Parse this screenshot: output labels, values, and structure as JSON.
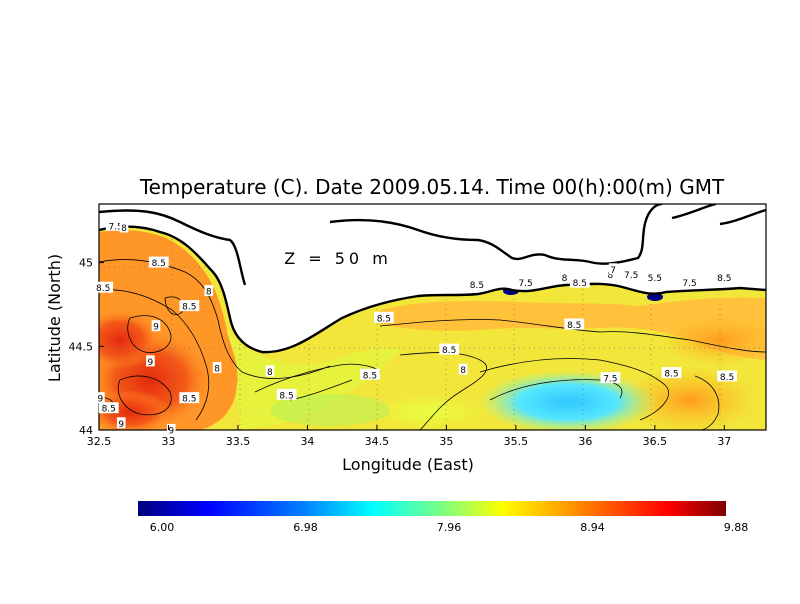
{
  "chart_data": {
    "type": "heatmap",
    "title": "Temperature (C). Date 2009.05.14. Time 00(h):00(m) GMT",
    "xlabel": "Longitude (East)",
    "ylabel": "Latitude (North)",
    "annotation": "Z = 50 m",
    "xlim": [
      32.5,
      37.3
    ],
    "ylim": [
      44.0,
      45.35
    ],
    "x_ticks": [
      {
        "value": 32.5,
        "label": "32.5"
      },
      {
        "value": 33,
        "label": "33"
      },
      {
        "value": 33.5,
        "label": "33.5"
      },
      {
        "value": 34,
        "label": "34"
      },
      {
        "value": 34.5,
        "label": "34.5"
      },
      {
        "value": 35,
        "label": "35"
      },
      {
        "value": 35.5,
        "label": "35.5"
      },
      {
        "value": 36,
        "label": "36"
      },
      {
        "value": 36.5,
        "label": "36.5"
      },
      {
        "value": 37,
        "label": "37"
      }
    ],
    "y_ticks": [
      {
        "value": 44,
        "label": "44"
      },
      {
        "value": 44.5,
        "label": "44.5"
      },
      {
        "value": 45,
        "label": "45"
      }
    ],
    "grid": true,
    "colorbar": {
      "min": 6.0,
      "max": 9.88,
      "tick_labels": [
        "6.00",
        "6.98",
        "7.96",
        "8.94",
        "9.88"
      ],
      "colors": [
        "#00007f",
        "#0000ff",
        "#007fff",
        "#00ffff",
        "#7fff7f",
        "#ffff00",
        "#ff7f00",
        "#ff0000",
        "#7f0000"
      ]
    },
    "contour_labels": [
      {
        "lon": 32.62,
        "lat": 45.22,
        "label": "7.5"
      },
      {
        "lon": 32.68,
        "lat": 45.21,
        "label": "8"
      },
      {
        "lon": 32.93,
        "lat": 45.0,
        "label": "8.5"
      },
      {
        "lon": 32.53,
        "lat": 44.85,
        "label": "8.5"
      },
      {
        "lon": 33.29,
        "lat": 44.83,
        "label": "8"
      },
      {
        "lon": 33.15,
        "lat": 44.74,
        "label": "8.5"
      },
      {
        "lon": 32.91,
        "lat": 44.62,
        "label": "9"
      },
      {
        "lon": 32.87,
        "lat": 44.41,
        "label": "9"
      },
      {
        "lon": 33.35,
        "lat": 44.37,
        "label": "8"
      },
      {
        "lon": 33.15,
        "lat": 44.19,
        "label": "8.5"
      },
      {
        "lon": 32.57,
        "lat": 44.13,
        "label": "8.5"
      },
      {
        "lon": 32.66,
        "lat": 44.04,
        "label": "9"
      },
      {
        "lon": 32.51,
        "lat": 44.19,
        "label": "9"
      },
      {
        "lon": 33.02,
        "lat": 44.0,
        "label": "9"
      },
      {
        "lon": 33.73,
        "lat": 44.35,
        "label": "8"
      },
      {
        "lon": 33.85,
        "lat": 44.21,
        "label": "8.5"
      },
      {
        "lon": 34.45,
        "lat": 44.33,
        "label": "8.5"
      },
      {
        "lon": 34.55,
        "lat": 44.67,
        "label": "8.5"
      },
      {
        "lon": 35.02,
        "lat": 44.48,
        "label": "8.5"
      },
      {
        "lon": 35.12,
        "lat": 44.36,
        "label": "8"
      },
      {
        "lon": 35.22,
        "lat": 44.87,
        "label": "8.5"
      },
      {
        "lon": 35.57,
        "lat": 44.88,
        "label": "7.5"
      },
      {
        "lon": 35.85,
        "lat": 44.91,
        "label": "8"
      },
      {
        "lon": 35.96,
        "lat": 44.88,
        "label": "8.5"
      },
      {
        "lon": 36.18,
        "lat": 44.93,
        "label": "8"
      },
      {
        "lon": 36.2,
        "lat": 44.96,
        "label": "7"
      },
      {
        "lon": 36.33,
        "lat": 44.93,
        "label": "7.5"
      },
      {
        "lon": 36.5,
        "lat": 44.91,
        "label": "5.5"
      },
      {
        "lon": 36.75,
        "lat": 44.88,
        "label": "7.5"
      },
      {
        "lon": 37.0,
        "lat": 44.91,
        "label": "8.5"
      },
      {
        "lon": 35.92,
        "lat": 44.63,
        "label": "8.5"
      },
      {
        "lon": 36.18,
        "lat": 44.31,
        "label": "7.5"
      },
      {
        "lon": 36.62,
        "lat": 44.34,
        "label": "8.5"
      },
      {
        "lon": 37.02,
        "lat": 44.32,
        "label": "8.5"
      }
    ]
  }
}
